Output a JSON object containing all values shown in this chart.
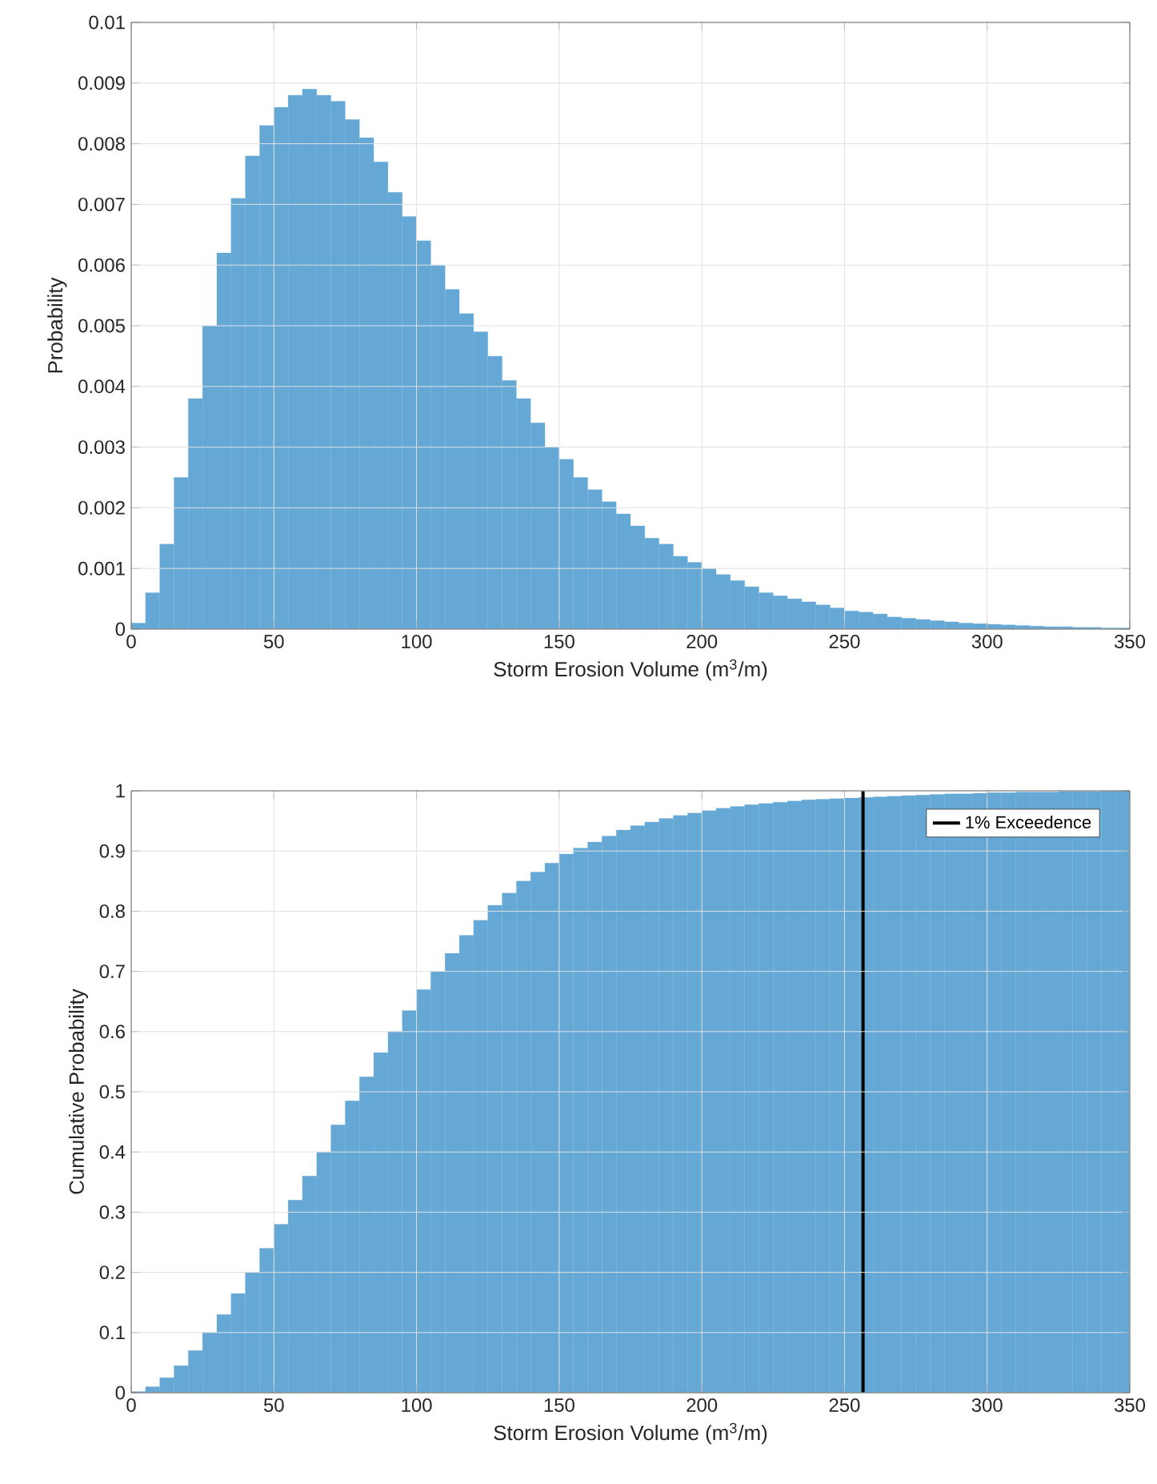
{
  "chart_data": [
    {
      "type": "histogram",
      "ylabel": "Probability",
      "xlabel": "Storm Erosion Volume (m$^{3}$/m)",
      "color": "#65a8d6",
      "bins": [
        0,
        5,
        10,
        15,
        20,
        25,
        30,
        35,
        40,
        45,
        50,
        55,
        60,
        65,
        70,
        75,
        80,
        85,
        90,
        95,
        100,
        105,
        110,
        115,
        120,
        125,
        130,
        135,
        140,
        145,
        150,
        155,
        160,
        165,
        170,
        175,
        180,
        185,
        190,
        195,
        200,
        205,
        210,
        215,
        220,
        225,
        230,
        235,
        240,
        245,
        250,
        255,
        260,
        265,
        270,
        275,
        280,
        285,
        290,
        295,
        300,
        305,
        310,
        315,
        320,
        325,
        330,
        335,
        340,
        345,
        350
      ],
      "values": [
        0.0001,
        0.0006,
        0.0014,
        0.0025,
        0.0038,
        0.005,
        0.0062,
        0.0071,
        0.0078,
        0.0083,
        0.0086,
        0.0088,
        0.0089,
        0.0088,
        0.0087,
        0.0084,
        0.0081,
        0.0077,
        0.0072,
        0.0068,
        0.0064,
        0.006,
        0.0056,
        0.0052,
        0.0049,
        0.0045,
        0.0041,
        0.0038,
        0.0034,
        0.003,
        0.0028,
        0.0025,
        0.0023,
        0.0021,
        0.0019,
        0.0017,
        0.0015,
        0.0014,
        0.0012,
        0.0011,
        0.001,
        0.0009,
        0.0008,
        0.0007,
        0.0006,
        0.00055,
        0.0005,
        0.00045,
        0.0004,
        0.00035,
        0.0003,
        0.00028,
        0.00025,
        0.0002,
        0.00018,
        0.00016,
        0.00014,
        0.00012,
        0.0001,
        9e-05,
        8e-05,
        7e-05,
        6e-05,
        5e-05,
        4e-05,
        4e-05,
        3e-05,
        3e-05,
        2e-05,
        2e-05
      ],
      "xlim": [
        0,
        350
      ],
      "xticks": [
        0,
        50,
        100,
        150,
        200,
        250,
        300,
        350
      ],
      "ylim": [
        0,
        0.01
      ],
      "yticks": [
        0,
        0.001,
        0.002,
        0.003,
        0.004,
        0.005,
        0.006,
        0.007,
        0.008,
        0.009,
        0.01
      ],
      "grid": true
    },
    {
      "type": "histogram",
      "ylabel": "Cumulative Probability",
      "xlabel": "Storm Erosion Volume (m$^{3}$/m)",
      "color": "#65a8d6",
      "bins": [
        0,
        5,
        10,
        15,
        20,
        25,
        30,
        35,
        40,
        45,
        50,
        55,
        60,
        65,
        70,
        75,
        80,
        85,
        90,
        95,
        100,
        105,
        110,
        115,
        120,
        125,
        130,
        135,
        140,
        145,
        150,
        155,
        160,
        165,
        170,
        175,
        180,
        185,
        190,
        195,
        200,
        205,
        210,
        215,
        220,
        225,
        230,
        235,
        240,
        245,
        250,
        255,
        260,
        265,
        270,
        275,
        280,
        285,
        290,
        295,
        300,
        305,
        310,
        315,
        320,
        325,
        330,
        335,
        340,
        345,
        350
      ],
      "values": [
        0.002,
        0.01,
        0.025,
        0.045,
        0.07,
        0.1,
        0.13,
        0.165,
        0.2,
        0.24,
        0.28,
        0.32,
        0.36,
        0.4,
        0.445,
        0.485,
        0.525,
        0.565,
        0.6,
        0.635,
        0.67,
        0.7,
        0.73,
        0.76,
        0.785,
        0.81,
        0.83,
        0.85,
        0.865,
        0.88,
        0.895,
        0.905,
        0.915,
        0.925,
        0.935,
        0.942,
        0.948,
        0.954,
        0.959,
        0.963,
        0.967,
        0.971,
        0.974,
        0.977,
        0.979,
        0.981,
        0.983,
        0.985,
        0.986,
        0.987,
        0.988,
        0.989,
        0.99,
        0.991,
        0.992,
        0.993,
        0.994,
        0.995,
        0.995,
        0.996,
        0.997,
        0.997,
        0.998,
        0.998,
        0.998,
        0.999,
        0.999,
        0.999,
        1,
        1
      ],
      "xlim": [
        0,
        350
      ],
      "xticks": [
        0,
        50,
        100,
        150,
        200,
        250,
        300,
        350
      ],
      "ylim": [
        0,
        1
      ],
      "yticks": [
        0,
        0.1,
        0.2,
        0.3,
        0.4,
        0.5,
        0.6,
        0.7,
        0.8,
        0.9,
        1
      ],
      "ref_lines": [
        {
          "axis": "x",
          "value": 256.5,
          "label": "1% Exceedence",
          "color": "#000000"
        }
      ],
      "legend": "top right",
      "grid": true
    }
  ]
}
